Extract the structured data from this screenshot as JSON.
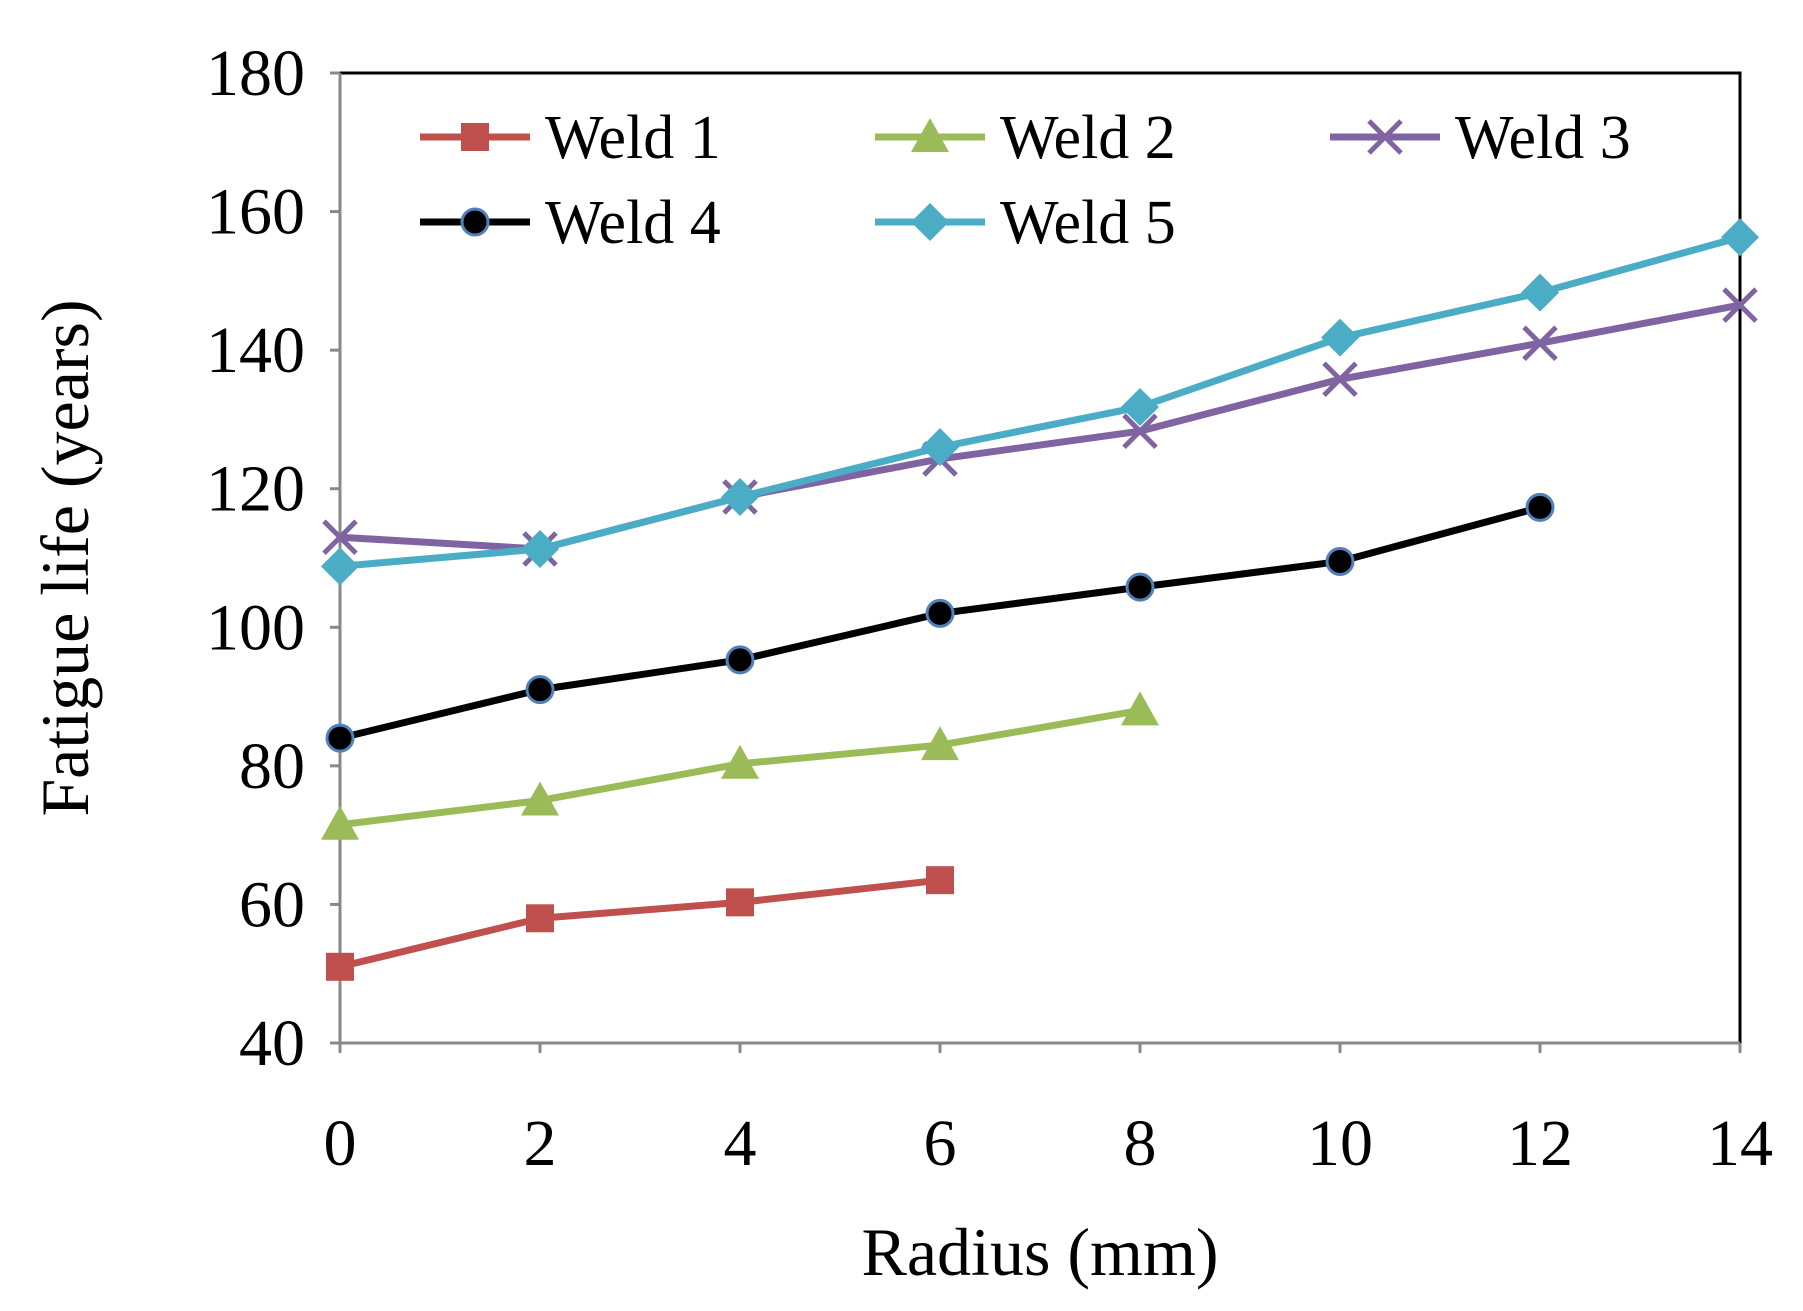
{
  "chart_data": {
    "type": "line",
    "title": "",
    "xlabel": "Radius (mm)",
    "ylabel": "Fatigue life (years)",
    "xlim": [
      0,
      14
    ],
    "ylim": [
      40,
      180
    ],
    "xticks": [
      0,
      2,
      4,
      6,
      8,
      10,
      12,
      14
    ],
    "yticks": [
      40,
      60,
      80,
      100,
      120,
      140,
      160,
      180
    ],
    "grid": false,
    "legend_position": "top",
    "series": [
      {
        "name": "Weld 1",
        "color": "#c0504d",
        "marker": "square",
        "x": [
          0,
          2,
          4,
          6
        ],
        "y": [
          51,
          58,
          60.3,
          63.5
        ]
      },
      {
        "name": "Weld 2",
        "color": "#9bbb59",
        "marker": "triangle",
        "x": [
          0,
          2,
          4,
          6,
          8
        ],
        "y": [
          71.5,
          75,
          80.3,
          83,
          88
        ]
      },
      {
        "name": "Weld 3",
        "color": "#8064a2",
        "marker": "x",
        "x": [
          0,
          2,
          4,
          6,
          8,
          10,
          12,
          14
        ],
        "y": [
          113,
          111.3,
          118.8,
          124.3,
          128.3,
          135.8,
          141,
          146.5
        ]
      },
      {
        "name": "Weld 4",
        "color": "#000000",
        "marker": "circle",
        "x": [
          0,
          2,
          4,
          6,
          8,
          10,
          12
        ],
        "y": [
          84,
          91,
          95.3,
          102,
          105.8,
          109.5,
          117.3
        ]
      },
      {
        "name": "Weld 5",
        "color": "#4bacc6",
        "marker": "diamond",
        "x": [
          0,
          2,
          4,
          6,
          8,
          10,
          12,
          14
        ],
        "y": [
          108.8,
          111.3,
          118.8,
          126,
          131.8,
          141.8,
          148.3,
          156.3
        ]
      }
    ]
  }
}
